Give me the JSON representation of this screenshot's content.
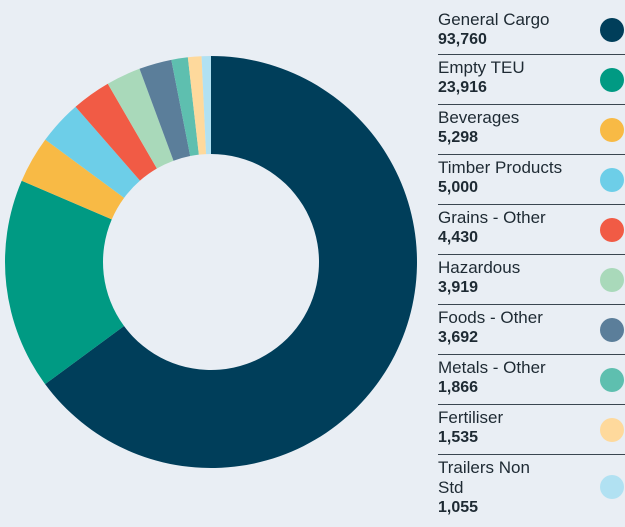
{
  "chart_data": {
    "type": "donut",
    "categories": [
      "General Cargo",
      "Empty TEU",
      "Beverages",
      "Timber Products",
      "Grains - Other",
      "Hazardous",
      "Foods - Other",
      "Metals - Other",
      "Fertiliser",
      "Trailers Non Std"
    ],
    "values": [
      93760,
      23916,
      5298,
      5000,
      4430,
      3919,
      3692,
      1866,
      1535,
      1055
    ],
    "value_labels": [
      "93,760",
      "23,916",
      "5,298",
      "5,000",
      "4,430",
      "3,919",
      "3,692",
      "1,866",
      "1,535",
      "1,055"
    ],
    "colors": [
      "#003e5a",
      "#009a83",
      "#f8ba45",
      "#6dcee8",
      "#f15b45",
      "#a9d9ba",
      "#5b7e9a",
      "#5ebfaf",
      "#fed99c",
      "#b1e1f2"
    ],
    "legend": "right"
  }
}
